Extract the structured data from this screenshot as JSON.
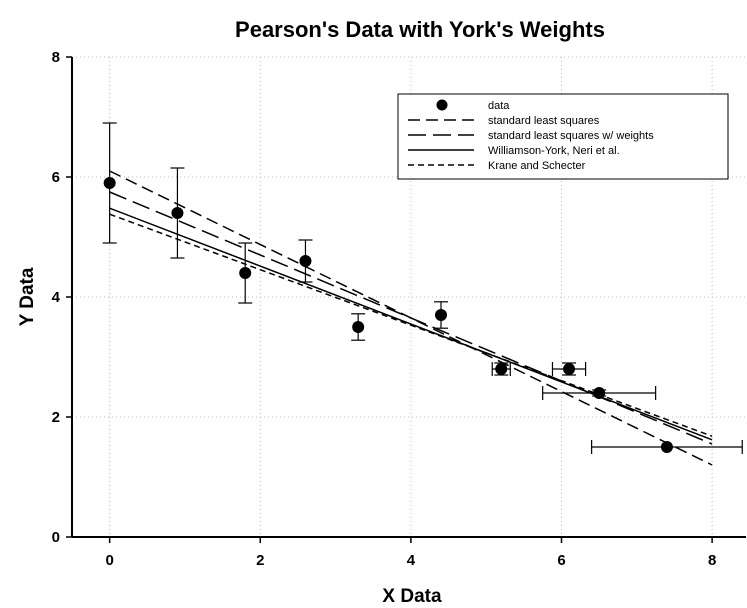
{
  "chart_data": {
    "type": "scatter",
    "title": "Pearson's Data with York's Weights",
    "xlabel": "X Data",
    "ylabel": "Y Data",
    "xlim": [
      -0.5,
      8.45
    ],
    "ylim": [
      0,
      8
    ],
    "xticks": [
      0,
      2,
      4,
      6,
      8
    ],
    "yticks": [
      0,
      2,
      4,
      6,
      8
    ],
    "grid": true,
    "legend_position": "top-right",
    "points": [
      {
        "x": 0.0,
        "y": 5.9,
        "xerr": 0.0,
        "yerr": 1.0
      },
      {
        "x": 0.9,
        "y": 5.4,
        "xerr": 0.0,
        "yerr": 0.75
      },
      {
        "x": 1.8,
        "y": 4.4,
        "xerr": 0.0,
        "yerr": 0.5
      },
      {
        "x": 2.6,
        "y": 4.6,
        "xerr": 0.0,
        "yerr": 0.35
      },
      {
        "x": 3.3,
        "y": 3.5,
        "xerr": 0.0,
        "yerr": 0.22
      },
      {
        "x": 4.4,
        "y": 3.7,
        "xerr": 0.0,
        "yerr": 0.22
      },
      {
        "x": 5.2,
        "y": 2.8,
        "xerr": 0.12,
        "yerr": 0.1
      },
      {
        "x": 6.1,
        "y": 2.8,
        "xerr": 0.22,
        "yerr": 0.1
      },
      {
        "x": 6.5,
        "y": 2.4,
        "xerr": 0.75,
        "yerr": 0.05
      },
      {
        "x": 7.4,
        "y": 1.5,
        "xerr": 1.0,
        "yerr": 0.0
      }
    ],
    "series": [
      {
        "name": "data",
        "style": "marker"
      },
      {
        "name": "standard least squares",
        "style": "dash",
        "x": [
          0,
          8
        ],
        "y": [
          6.1,
          1.2
        ]
      },
      {
        "name": "standard least squares w/ weights",
        "style": "longdash",
        "x": [
          0,
          8
        ],
        "y": [
          5.75,
          1.55
        ]
      },
      {
        "name": "Williamson-York, Neri et al.",
        "style": "solid",
        "x": [
          0,
          8
        ],
        "y": [
          5.48,
          1.62
        ]
      },
      {
        "name": "Krane and Schecter",
        "style": "shortdash",
        "x": [
          0,
          8
        ],
        "y": [
          5.38,
          1.68
        ]
      }
    ],
    "colors": {
      "marks": "#000000",
      "grid": "#bdbdbd",
      "background": "#ffffff"
    }
  }
}
